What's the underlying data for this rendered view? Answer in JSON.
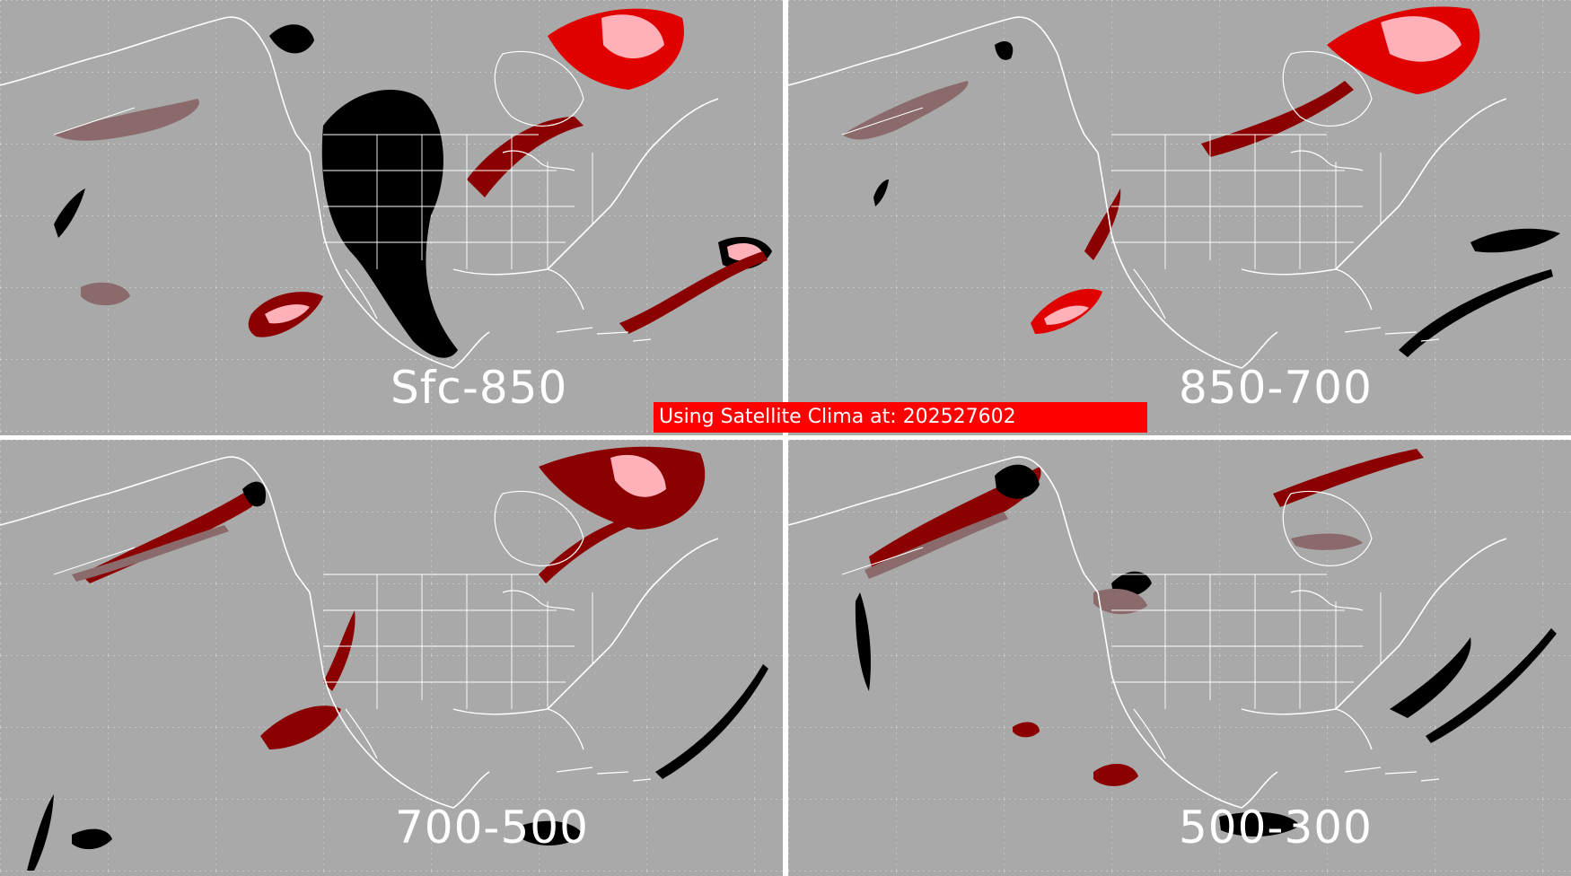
{
  "panels": {
    "top_left": {
      "label": "Sfc-850"
    },
    "top_right": {
      "label": "850-700"
    },
    "bottom_left": {
      "label": "700-500"
    },
    "bottom_right": {
      "label": "500-300"
    }
  },
  "status_banner": {
    "text": "Using Satellite Clima at: 202527602"
  },
  "colors": {
    "background": "#a9a9a9",
    "coastline": "#ffffff",
    "missing": "#000000",
    "dark_red": "#8b0000",
    "red": "#e00000",
    "pink": "#ffb0b8",
    "rose": "#8a6a6a",
    "banner": "#ff0000"
  }
}
